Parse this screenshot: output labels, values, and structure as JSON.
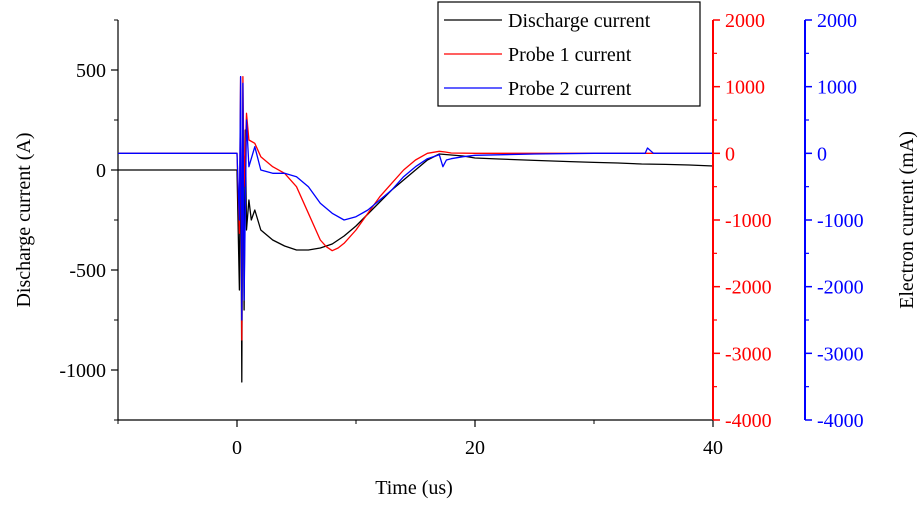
{
  "chart_data": {
    "type": "line",
    "title": "",
    "xlabel": "Time (us)",
    "ylabel_left": "Discharge current (A)",
    "ylabel_right": "Electron current (mA)",
    "xlim": [
      -10,
      40
    ],
    "x_ticks": [
      "0",
      "20",
      "40"
    ],
    "x_tick_values": [
      0,
      20,
      40
    ],
    "axes": {
      "discharge": {
        "ylim": [
          -1250,
          750
        ],
        "ticks": [
          "500",
          "0",
          "-500",
          "-1000"
        ],
        "tick_values": [
          500,
          0,
          -500,
          -1000
        ],
        "color": "#000000"
      },
      "probe1": {
        "ylim": [
          -4000,
          2000
        ],
        "ticks": [
          "2000",
          "1000",
          "0",
          "-1000",
          "-2000",
          "-3000",
          "-4000"
        ],
        "tick_values": [
          2000,
          1000,
          0,
          -1000,
          -2000,
          -3000,
          -4000
        ],
        "color": "#ff0000"
      },
      "probe2": {
        "ylim": [
          -4000,
          2000
        ],
        "ticks": [
          "2000",
          "1000",
          "0",
          "-1000",
          "-2000",
          "-3000",
          "-4000"
        ],
        "tick_values": [
          2000,
          1000,
          0,
          -1000,
          -2000,
          -3000,
          -4000
        ],
        "color": "#0000ff"
      }
    },
    "legend_position": "top-right",
    "grid": false,
    "series": [
      {
        "name": "Discharge current",
        "axis": "discharge",
        "color": "#000000",
        "x": [
          -10,
          -2,
          0,
          0.2,
          0.3,
          0.4,
          0.5,
          0.6,
          0.7,
          0.8,
          1.0,
          1.2,
          1.5,
          2,
          3,
          4,
          5,
          6,
          7,
          8,
          9,
          10,
          11,
          12,
          13,
          14,
          15,
          16,
          17,
          18,
          19,
          20,
          22,
          25,
          28,
          30,
          32,
          34,
          36,
          38,
          40
        ],
        "y": [
          0,
          0,
          0,
          -600,
          300,
          -1060,
          300,
          -700,
          200,
          -300,
          -150,
          -250,
          -200,
          -300,
          -350,
          -380,
          -400,
          -400,
          -390,
          -370,
          -330,
          -280,
          -220,
          -160,
          -100,
          -50,
          0,
          50,
          80,
          75,
          70,
          60,
          55,
          48,
          42,
          38,
          35,
          30,
          28,
          25,
          20
        ]
      },
      {
        "name": "Probe 1 current",
        "axis": "probe1",
        "color": "#ff0000",
        "x": [
          -10,
          -2,
          0,
          0.2,
          0.3,
          0.4,
          0.5,
          0.6,
          0.8,
          1.0,
          1.5,
          2,
          3,
          4,
          5,
          6,
          7,
          7.5,
          8,
          8.5,
          9,
          10,
          11,
          12,
          13,
          14,
          15,
          16,
          17,
          17.5,
          18,
          20,
          25,
          30,
          35,
          40
        ],
        "y": [
          0,
          0,
          0,
          -1200,
          1150,
          -2800,
          1150,
          -500,
          600,
          200,
          150,
          -50,
          -200,
          -300,
          -500,
          -900,
          -1300,
          -1400,
          -1460,
          -1420,
          -1350,
          -1150,
          -900,
          -650,
          -450,
          -250,
          -100,
          0,
          30,
          20,
          5,
          0,
          0,
          0,
          0,
          0
        ]
      },
      {
        "name": "Probe 2 current",
        "axis": "probe2",
        "color": "#0000ff",
        "x": [
          -10,
          -2,
          0,
          0.2,
          0.3,
          0.4,
          0.5,
          0.6,
          0.8,
          1.0,
          1.5,
          2,
          3,
          4,
          5,
          6,
          7,
          8,
          9,
          10,
          11,
          12,
          13,
          14,
          15,
          16,
          17,
          17.3,
          17.6,
          18,
          19,
          20,
          25,
          30,
          34.3,
          34.5,
          35,
          40
        ],
        "y": [
          0,
          0,
          0,
          -1000,
          1150,
          -2500,
          1050,
          -2200,
          500,
          -200,
          100,
          -250,
          -300,
          -300,
          -350,
          -500,
          -750,
          -900,
          -1000,
          -950,
          -850,
          -700,
          -550,
          -350,
          -200,
          -80,
          -20,
          -200,
          -100,
          -80,
          -50,
          -30,
          -10,
          0,
          0,
          80,
          0,
          0
        ]
      }
    ]
  }
}
